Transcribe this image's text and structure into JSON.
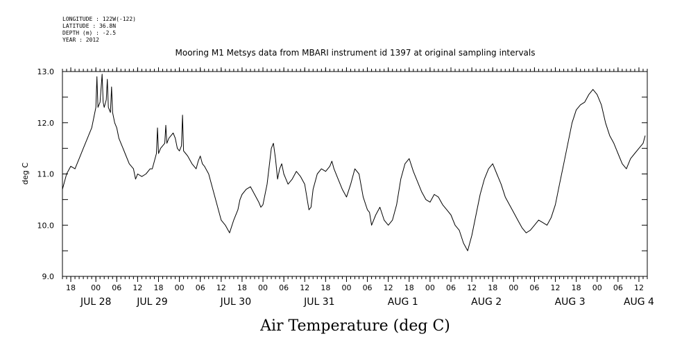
{
  "header": {
    "longitude": "LONGITUDE : 122W(-122)",
    "latitude": "LATITUDE : 36.8N",
    "depth": "DEPTH (m) : -2.5",
    "year": "YEAR : 2012"
  },
  "chart_data": {
    "type": "line",
    "title": "Mooring M1 Metsys data from MBARI instrument id 1397 at original sampling intervals",
    "xlabel": "Air Temperature (deg C)",
    "ylabel": "deg C",
    "ylim": [
      9.0,
      13.0
    ],
    "yticks": [
      "9.0",
      "10.0",
      "11.0",
      "12.0",
      "13.0"
    ],
    "x_unit": "hours since JUL 28 00:00",
    "xlim": [
      -16,
      264
    ],
    "hour_ticks": [
      {
        "h": -12,
        "label": "18"
      },
      {
        "h": 0,
        "label": "00"
      },
      {
        "h": 10,
        "label": "06"
      },
      {
        "h": 20,
        "label": "12"
      },
      {
        "h": 30,
        "label": "18"
      },
      {
        "h": 40,
        "label": "00"
      },
      {
        "h": 50,
        "label": "06"
      },
      {
        "h": 60,
        "label": "12"
      },
      {
        "h": 70,
        "label": "18"
      },
      {
        "h": 80,
        "label": "00"
      },
      {
        "h": 90,
        "label": "06"
      },
      {
        "h": 100,
        "label": "12"
      },
      {
        "h": 110,
        "label": "18"
      },
      {
        "h": 120,
        "label": "00"
      },
      {
        "h": 130,
        "label": "06"
      },
      {
        "h": 140,
        "label": "12"
      },
      {
        "h": 150,
        "label": "18"
      },
      {
        "h": 160,
        "label": "00"
      },
      {
        "h": 170,
        "label": "06"
      },
      {
        "h": 180,
        "label": "12"
      },
      {
        "h": 190,
        "label": "18"
      },
      {
        "h": 200,
        "label": "00"
      },
      {
        "h": 210,
        "label": "06"
      },
      {
        "h": 220,
        "label": "12"
      },
      {
        "h": 230,
        "label": "18"
      },
      {
        "h": 240,
        "label": "00"
      },
      {
        "h": 250,
        "label": "06"
      },
      {
        "h": 260,
        "label": "12"
      }
    ],
    "day_labels": [
      {
        "h": 0,
        "label": "JUL 28"
      },
      {
        "h": 27,
        "label": "JUL 29"
      },
      {
        "h": 67,
        "label": "JUL 30"
      },
      {
        "h": 107,
        "label": "JUL 31"
      },
      {
        "h": 147,
        "label": "AUG  1"
      },
      {
        "h": 187,
        "label": "AUG  2"
      },
      {
        "h": 227,
        "label": "AUG  3"
      },
      {
        "h": 260,
        "label": "AUG  4"
      }
    ],
    "series": [
      {
        "color": "#000000",
        "x": [
          -16,
          -14,
          -12,
          -10,
          -8,
          -6,
          -4,
          -2,
          -1,
          0,
          0.5,
          1,
          2,
          3,
          3.5,
          4,
          5,
          5.5,
          6,
          7,
          7.5,
          8,
          9,
          10,
          11,
          12,
          13,
          14,
          16,
          18,
          19,
          20,
          22,
          24,
          26,
          27,
          28,
          29,
          29.5,
          30,
          31,
          32,
          33,
          33.5,
          34,
          35,
          36,
          37,
          38,
          39,
          40,
          41,
          41.5,
          42,
          43,
          44,
          46,
          48,
          49,
          50,
          51,
          52,
          54,
          56,
          58,
          60,
          62,
          64,
          66,
          68,
          69,
          70,
          72,
          74,
          76,
          78,
          79,
          80,
          82,
          84,
          85,
          86,
          87,
          88,
          89,
          90,
          92,
          94,
          96,
          98,
          100,
          102,
          103,
          104,
          106,
          108,
          110,
          112,
          113,
          114,
          116,
          118,
          120,
          122,
          124,
          126,
          128,
          130,
          131,
          132,
          134,
          136,
          138,
          140,
          142,
          144,
          146,
          148,
          150,
          152,
          154,
          156,
          158,
          160,
          162,
          164,
          166,
          168,
          170,
          172,
          174,
          176,
          178,
          180,
          182,
          184,
          186,
          188,
          190,
          192,
          194,
          196,
          198,
          200,
          202,
          204,
          206,
          208,
          210,
          212,
          214,
          216,
          218,
          220,
          222,
          224,
          226,
          228,
          230,
          232,
          234,
          236,
          238,
          240,
          242,
          244,
          246,
          248,
          250,
          252,
          254,
          256,
          258,
          260,
          262,
          263
        ],
        "y": [
          10.7,
          11.0,
          11.15,
          11.1,
          11.3,
          11.5,
          11.7,
          11.9,
          12.1,
          12.3,
          12.9,
          12.3,
          12.4,
          12.95,
          12.4,
          12.3,
          12.45,
          12.85,
          12.3,
          12.2,
          12.7,
          12.2,
          12.0,
          11.9,
          11.7,
          11.6,
          11.5,
          11.4,
          11.2,
          11.1,
          10.9,
          11.0,
          10.95,
          11.0,
          11.1,
          11.1,
          11.25,
          11.4,
          11.9,
          11.4,
          11.5,
          11.55,
          11.6,
          11.95,
          11.6,
          11.7,
          11.75,
          11.8,
          11.7,
          11.5,
          11.45,
          11.55,
          12.15,
          11.45,
          11.4,
          11.35,
          11.2,
          11.1,
          11.25,
          11.35,
          11.2,
          11.15,
          11.0,
          10.7,
          10.4,
          10.1,
          10.0,
          9.85,
          10.1,
          10.3,
          10.5,
          10.6,
          10.7,
          10.75,
          10.6,
          10.45,
          10.35,
          10.4,
          10.8,
          11.5,
          11.6,
          11.3,
          10.9,
          11.1,
          11.2,
          11.0,
          10.8,
          10.9,
          11.05,
          10.95,
          10.8,
          10.3,
          10.35,
          10.7,
          11.0,
          11.1,
          11.05,
          11.15,
          11.25,
          11.1,
          10.9,
          10.7,
          10.55,
          10.8,
          11.1,
          11.0,
          10.55,
          10.3,
          10.25,
          10.0,
          10.2,
          10.35,
          10.1,
          10.0,
          10.1,
          10.4,
          10.9,
          11.2,
          11.3,
          11.05,
          10.85,
          10.65,
          10.5,
          10.45,
          10.6,
          10.55,
          10.4,
          10.3,
          10.2,
          10.0,
          9.9,
          9.65,
          9.5,
          9.8,
          10.2,
          10.6,
          10.9,
          11.1,
          11.2,
          11.0,
          10.8,
          10.55,
          10.4,
          10.25,
          10.1,
          9.95,
          9.85,
          9.9,
          10.0,
          10.1,
          10.05,
          10.0,
          10.15,
          10.4,
          10.8,
          11.2,
          11.6,
          12.0,
          12.25,
          12.35,
          12.4,
          12.55,
          12.65,
          12.55,
          12.35,
          12.0,
          11.75,
          11.6,
          11.4,
          11.2,
          11.1,
          11.3,
          11.4,
          11.5,
          11.6,
          11.75
        ]
      }
    ]
  }
}
